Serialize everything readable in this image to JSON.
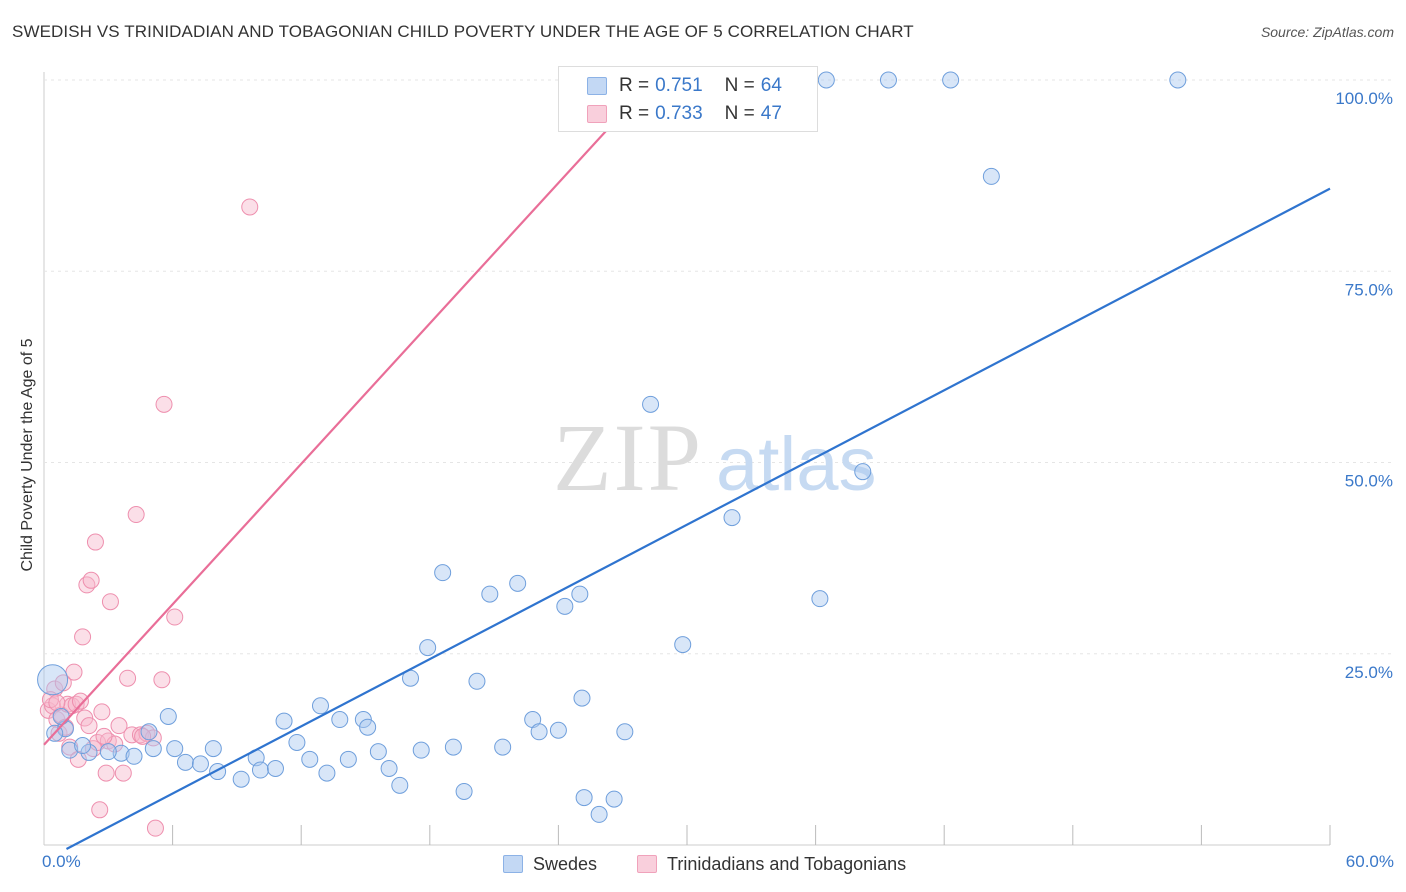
{
  "header": {
    "title": "SWEDISH VS TRINIDADIAN AND TOBAGONIAN CHILD POVERTY UNDER THE AGE OF 5 CORRELATION CHART",
    "source": "Source: ZipAtlas.com"
  },
  "watermark": {
    "zip": "ZIP",
    "atlas": "atlas"
  },
  "legend": {
    "rows": [
      {
        "r_label": "R =",
        "r_value": "0.751",
        "n_label": "N =",
        "n_value": "64",
        "color": "#a9c8f0"
      },
      {
        "r_label": "R =",
        "r_value": "0.733",
        "n_label": "N =",
        "n_value": "47",
        "color": "#f6b8cc"
      }
    ]
  },
  "bottom_legend": {
    "items": [
      {
        "label": "Swedes",
        "color": "#a9c8f0"
      },
      {
        "label": "Trinidadians and Tobagonians",
        "color": "#f6b8cc"
      }
    ]
  },
  "axes": {
    "ylabel": "Child Poverty Under the Age of 5",
    "x_left_label": "0.0%",
    "x_right_label": "60.0%",
    "y_tick_labels": [
      "100.0%",
      "75.0%",
      "50.0%",
      "25.0%"
    ]
  },
  "colors": {
    "blue_fill": "#a9c8f0",
    "blue_stroke": "#6f9fdc",
    "blue_line": "#2f74cf",
    "pink_fill": "#f6b8cc",
    "pink_stroke": "#ee8fae",
    "pink_line": "#e96e98",
    "tick_text": "#3a78c9",
    "grid": "#e5e5e5"
  },
  "chart_data": {
    "type": "scatter",
    "title": "SWEDISH VS TRINIDADIAN AND TOBAGONIAN CHILD POVERTY UNDER THE AGE OF 5 CORRELATION CHART",
    "xlabel": "",
    "ylabel": "Child Poverty Under the Age of 5",
    "xlim": [
      0,
      60
    ],
    "ylim": [
      0,
      100
    ],
    "y_ticks": [
      25,
      50,
      75,
      100
    ],
    "grid": true,
    "legend_position": "top-center",
    "series": [
      {
        "name": "Swedes",
        "r": 0.751,
        "n": 64,
        "trend": {
          "x": [
            0,
            60
          ],
          "y": [
            -0.3,
            85.8
          ]
        },
        "points": [
          [
            0.4,
            21.6
          ],
          [
            1.0,
            15.2
          ],
          [
            1.2,
            12.4
          ],
          [
            2.1,
            12.1
          ],
          [
            3.6,
            12.0
          ],
          [
            4.2,
            11.6
          ],
          [
            4.9,
            14.8
          ],
          [
            5.1,
            12.6
          ],
          [
            5.8,
            16.8
          ],
          [
            6.1,
            12.6
          ],
          [
            6.6,
            10.8
          ],
          [
            7.3,
            10.6
          ],
          [
            7.9,
            12.6
          ],
          [
            8.1,
            9.6
          ],
          [
            9.2,
            8.6
          ],
          [
            9.9,
            11.4
          ],
          [
            10.1,
            9.8
          ],
          [
            10.8,
            10.0
          ],
          [
            11.2,
            16.2
          ],
          [
            11.8,
            13.4
          ],
          [
            12.4,
            11.2
          ],
          [
            12.9,
            18.2
          ],
          [
            13.2,
            9.4
          ],
          [
            13.8,
            16.4
          ],
          [
            14.2,
            11.2
          ],
          [
            14.9,
            16.4
          ],
          [
            15.1,
            15.4
          ],
          [
            15.6,
            12.2
          ],
          [
            16.1,
            10.0
          ],
          [
            16.6,
            7.8
          ],
          [
            17.1,
            21.8
          ],
          [
            17.6,
            12.4
          ],
          [
            17.9,
            25.8
          ],
          [
            18.6,
            35.6
          ],
          [
            19.1,
            12.8
          ],
          [
            19.6,
            7.0
          ],
          [
            20.2,
            21.4
          ],
          [
            20.8,
            32.8
          ],
          [
            21.4,
            12.8
          ],
          [
            22.1,
            34.2
          ],
          [
            22.8,
            16.4
          ],
          [
            23.1,
            14.8
          ],
          [
            24.0,
            15.0
          ],
          [
            24.3,
            31.2
          ],
          [
            25.0,
            32.8
          ],
          [
            25.1,
            19.2
          ],
          [
            25.2,
            6.2
          ],
          [
            25.9,
            4.0
          ],
          [
            26.6,
            6.0
          ],
          [
            27.1,
            14.8
          ],
          [
            28.3,
            57.6
          ],
          [
            29.8,
            26.2
          ],
          [
            32.1,
            42.8
          ],
          [
            36.2,
            32.2
          ],
          [
            36.5,
            100
          ],
          [
            38.2,
            48.8
          ],
          [
            39.4,
            100
          ],
          [
            42.3,
            100
          ],
          [
            44.2,
            87.4
          ],
          [
            52.9,
            100
          ],
          [
            0.5,
            14.6
          ],
          [
            1.8,
            13.0
          ],
          [
            3.0,
            12.2
          ],
          [
            0.8,
            16.8
          ]
        ]
      },
      {
        "name": "Trinidadians and Tobagonians",
        "r": 0.733,
        "n": 47,
        "trend": {
          "x": [
            0,
            28.4
          ],
          "y": [
            13.1,
            100
          ]
        },
        "points": [
          [
            0.2,
            17.6
          ],
          [
            0.4,
            18.2
          ],
          [
            0.5,
            20.4
          ],
          [
            0.6,
            16.4
          ],
          [
            0.7,
            14.6
          ],
          [
            0.8,
            17.0
          ],
          [
            0.9,
            21.2
          ],
          [
            1.0,
            15.4
          ],
          [
            1.1,
            18.4
          ],
          [
            1.2,
            12.8
          ],
          [
            1.3,
            18.2
          ],
          [
            1.4,
            22.6
          ],
          [
            1.5,
            18.4
          ],
          [
            1.6,
            11.2
          ],
          [
            1.8,
            27.2
          ],
          [
            1.9,
            16.6
          ],
          [
            2.0,
            34.0
          ],
          [
            2.1,
            15.6
          ],
          [
            2.2,
            34.6
          ],
          [
            2.3,
            12.6
          ],
          [
            2.4,
            39.6
          ],
          [
            2.5,
            13.4
          ],
          [
            2.6,
            4.6
          ],
          [
            2.7,
            17.4
          ],
          [
            2.9,
            9.4
          ],
          [
            3.0,
            13.6
          ],
          [
            3.1,
            31.8
          ],
          [
            3.3,
            13.2
          ],
          [
            3.5,
            15.6
          ],
          [
            3.7,
            9.4
          ],
          [
            3.9,
            21.8
          ],
          [
            4.1,
            14.4
          ],
          [
            4.3,
            43.2
          ],
          [
            4.5,
            14.4
          ],
          [
            4.8,
            14.6
          ],
          [
            5.1,
            14.0
          ],
          [
            5.2,
            2.2
          ],
          [
            5.5,
            21.6
          ],
          [
            5.6,
            57.6
          ],
          [
            6.1,
            29.8
          ],
          [
            9.6,
            83.4
          ],
          [
            28.4,
            100
          ],
          [
            0.3,
            19.0
          ],
          [
            0.6,
            18.6
          ],
          [
            1.7,
            18.8
          ],
          [
            2.8,
            14.2
          ],
          [
            4.6,
            14.2
          ]
        ]
      }
    ]
  }
}
